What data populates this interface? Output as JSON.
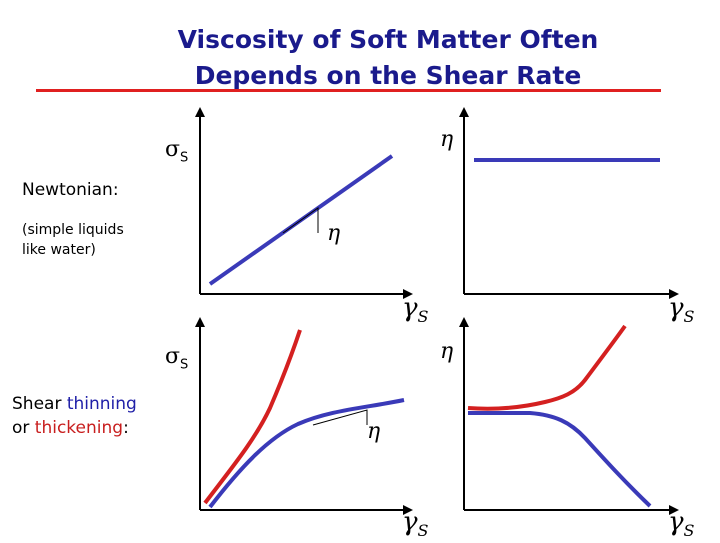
{
  "title": {
    "line1": "Viscosity of Soft Matter Often",
    "line2": "Depends on the Shear Rate"
  },
  "labels": {
    "newtonian": "Newtonian:",
    "newtonian_sub_line1": "(simple liquids",
    "newtonian_sub_line2": "like water)",
    "shear_word": "Shear ",
    "thinning": "thinning",
    "or": "or ",
    "thickening": "thickening",
    "colon": ":"
  },
  "symbols": {
    "sigma": "σ",
    "sigma_sub": "S",
    "eta": "η",
    "gamma": "γ",
    "gamma_sub": "S"
  },
  "colors": {
    "title": "#1a1a8c",
    "rule": "#e02020",
    "blue_curve": "#3a3ab8",
    "red_curve": "#d42020",
    "axis": "#000000"
  }
}
